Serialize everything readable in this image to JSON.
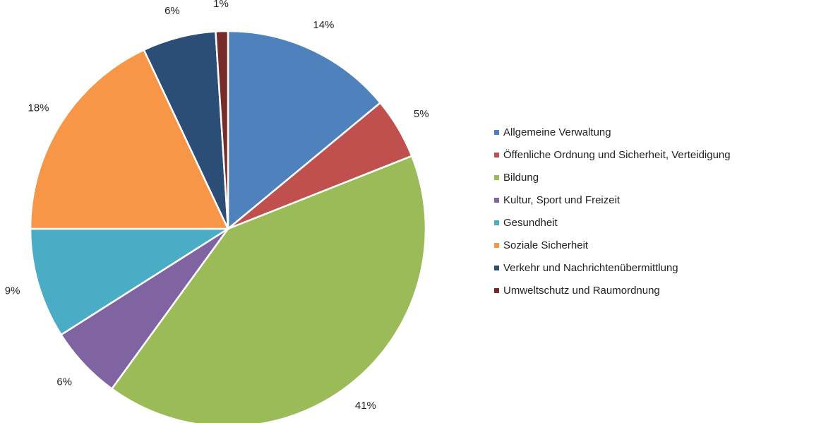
{
  "chart_data": {
    "type": "pie",
    "categories": [
      "Allgemeine Verwaltung",
      "Öffenliche Ordnung und Sicherheit, Verteidigung",
      "Bildung",
      "Kultur, Sport und Freizeit",
      "Gesundheit",
      "Soziale Sicherheit",
      "Verkehr und Nachrichtenübermittlung",
      "Umweltschutz und Raumordnung"
    ],
    "values": [
      14,
      5,
      41,
      6,
      9,
      18,
      6,
      1
    ],
    "value_labels": [
      "14%",
      "5%",
      "41%",
      "6%",
      "9%",
      "18%",
      "6%",
      "1%"
    ],
    "colors": [
      "#4f81bd",
      "#c0504d",
      "#9bbb59",
      "#8064a2",
      "#4bacc6",
      "#f79646",
      "#2c4d75",
      "#772c2a"
    ],
    "legend": "right"
  }
}
